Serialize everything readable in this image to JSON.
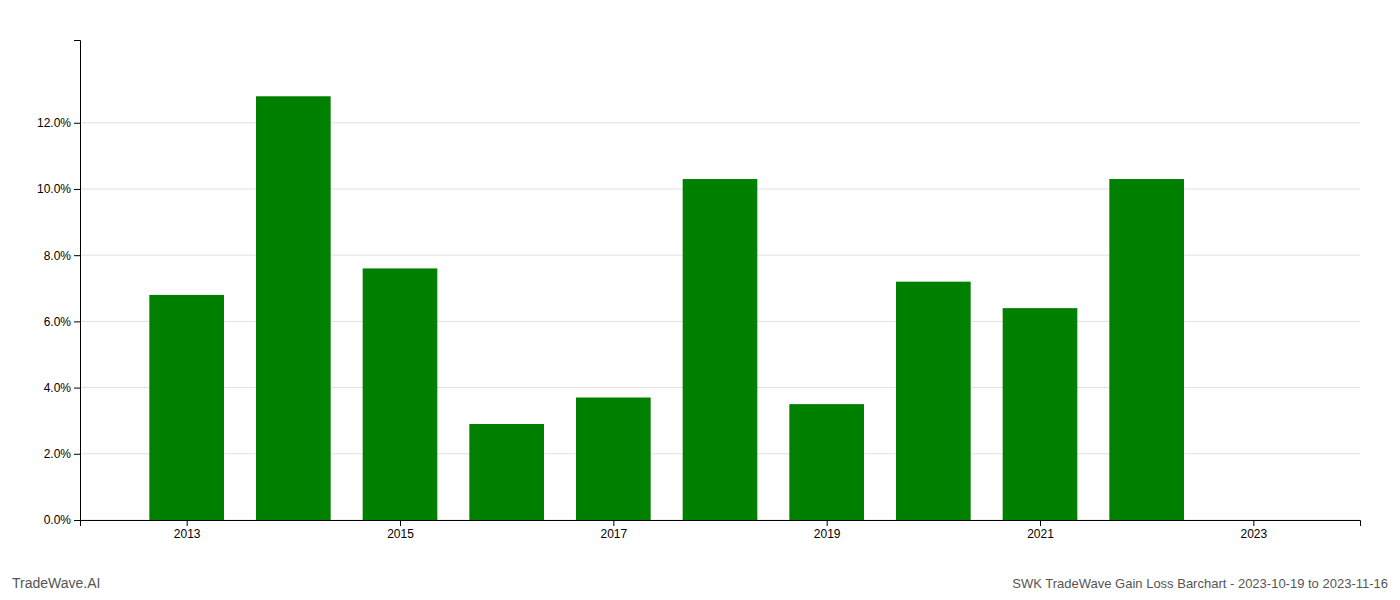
{
  "chart_data": {
    "type": "bar",
    "title": "SWK TradeWave Gain Loss Barchart - 2023-10-19 to 2023-11-16",
    "annotations": [
      "TradeWave.AI"
    ],
    "x": [
      2013,
      2014,
      2015,
      2016,
      2017,
      2018,
      2019,
      2020,
      2021,
      2022
    ],
    "values": [
      0.068,
      0.128,
      0.076,
      0.029,
      0.037,
      0.103,
      0.035,
      0.072,
      0.064,
      0.103
    ],
    "color": "#008000",
    "xlim": [
      2012.0,
      2024.0
    ],
    "xticks": [
      2013,
      2015,
      2017,
      2019,
      2021,
      2023
    ],
    "ylim": [
      0.0,
      0.145
    ],
    "yticks": [
      {
        "value": 0.0,
        "label": "0.0%"
      },
      {
        "value": 0.02,
        "label": "2.0%"
      },
      {
        "value": 0.04,
        "label": "4.0%"
      },
      {
        "value": 0.06,
        "label": "6.0%"
      },
      {
        "value": 0.08,
        "label": "8.0%"
      },
      {
        "value": 0.1,
        "label": "10.0%"
      },
      {
        "value": 0.12,
        "label": "12.0%"
      }
    ],
    "grid": true
  }
}
